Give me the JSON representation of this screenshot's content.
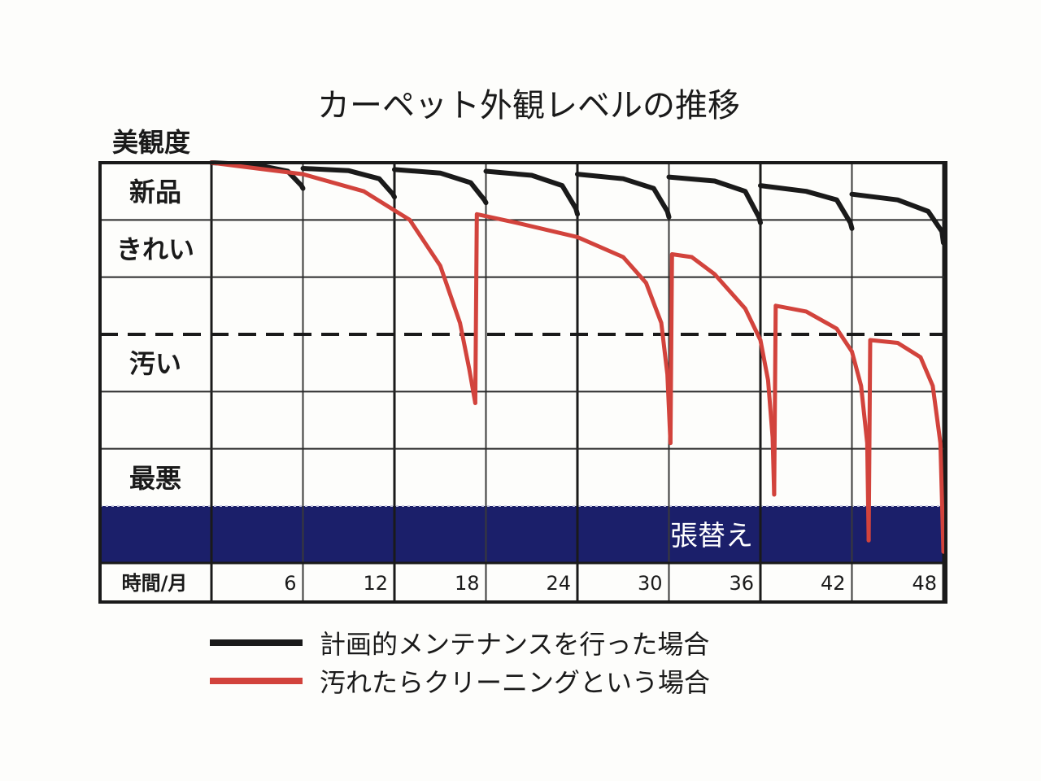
{
  "chart_data": {
    "type": "line",
    "title": "カーペット外観レベルの推移",
    "ylabel": "美観度",
    "xlabel": "時間/月",
    "xticks": [
      6,
      12,
      18,
      24,
      30,
      36,
      42,
      48
    ],
    "xlim": [
      0,
      48
    ],
    "ylim": [
      0,
      7
    ],
    "ylevels": [
      "新品",
      "きれい",
      "",
      "汚い",
      "",
      "最悪"
    ],
    "band_label": "張替え",
    "threshold_y": 4,
    "grid": true,
    "legend_position": "bottom",
    "colors": {
      "planned": "#1a1a1a",
      "reactive": "#d2433c",
      "band": "#1b1f6a"
    },
    "series": [
      {
        "name": "計画的メンテナンスを行った場合",
        "color": "#1a1a1a",
        "segments": [
          [
            [
              0,
              7.0
            ],
            [
              3,
              6.96
            ],
            [
              5,
              6.85
            ],
            [
              5.9,
              6.6
            ],
            [
              6,
              6.55
            ]
          ],
          [
            [
              6,
              6.9
            ],
            [
              9,
              6.86
            ],
            [
              11,
              6.72
            ],
            [
              11.9,
              6.45
            ],
            [
              12,
              6.4
            ]
          ],
          [
            [
              12,
              6.88
            ],
            [
              15,
              6.82
            ],
            [
              17,
              6.65
            ],
            [
              17.9,
              6.35
            ],
            [
              18,
              6.3
            ]
          ],
          [
            [
              18,
              6.85
            ],
            [
              21,
              6.78
            ],
            [
              23,
              6.6
            ],
            [
              23.9,
              6.2
            ],
            [
              24,
              6.1
            ]
          ],
          [
            [
              24,
              6.8
            ],
            [
              27,
              6.72
            ],
            [
              29,
              6.55
            ],
            [
              29.9,
              6.15
            ],
            [
              30,
              6.05
            ]
          ],
          [
            [
              30,
              6.75
            ],
            [
              33,
              6.68
            ],
            [
              35,
              6.5
            ],
            [
              35.9,
              6.05
            ],
            [
              36,
              5.95
            ]
          ],
          [
            [
              36,
              6.6
            ],
            [
              39,
              6.5
            ],
            [
              41,
              6.35
            ],
            [
              41.9,
              5.95
            ],
            [
              42,
              5.85
            ]
          ],
          [
            [
              42,
              6.45
            ],
            [
              45,
              6.35
            ],
            [
              47,
              6.15
            ],
            [
              47.9,
              5.8
            ],
            [
              48,
              5.6
            ]
          ]
        ]
      },
      {
        "name": "汚れたらクリーニングという場合",
        "color": "#d2433c",
        "segments": [
          [
            [
              0,
              7.0
            ],
            [
              6,
              6.8
            ],
            [
              10,
              6.5
            ],
            [
              13,
              6.0
            ],
            [
              15,
              5.2
            ],
            [
              16.3,
              4.2
            ],
            [
              16.9,
              3.4
            ],
            [
              17.3,
              2.8
            ]
          ],
          [
            [
              17.3,
              2.8
            ],
            [
              17.4,
              6.1
            ],
            [
              20,
              5.95
            ],
            [
              24,
              5.7
            ],
            [
              27,
              5.35
            ],
            [
              28.5,
              4.9
            ],
            [
              29.5,
              4.2
            ],
            [
              29.9,
              3.3
            ],
            [
              30.1,
              2.1
            ]
          ],
          [
            [
              30.1,
              2.1
            ],
            [
              30.2,
              5.4
            ],
            [
              31.5,
              5.35
            ],
            [
              33,
              5.05
            ],
            [
              35,
              4.45
            ],
            [
              36,
              3.9
            ],
            [
              36.5,
              3.2
            ],
            [
              36.8,
              2.2
            ],
            [
              36.9,
              1.2
            ]
          ],
          [
            [
              36.9,
              1.2
            ],
            [
              37.0,
              4.5
            ],
            [
              39,
              4.4
            ],
            [
              41,
              4.1
            ],
            [
              42,
              3.7
            ],
            [
              42.6,
              3.1
            ],
            [
              43.0,
              2.1
            ],
            [
              43.1,
              0.4
            ]
          ],
          [
            [
              43.1,
              0.4
            ],
            [
              43.2,
              3.9
            ],
            [
              45,
              3.85
            ],
            [
              46.5,
              3.6
            ],
            [
              47.3,
              3.1
            ],
            [
              47.8,
              2.1
            ],
            [
              48,
              0.2
            ]
          ]
        ]
      }
    ]
  }
}
